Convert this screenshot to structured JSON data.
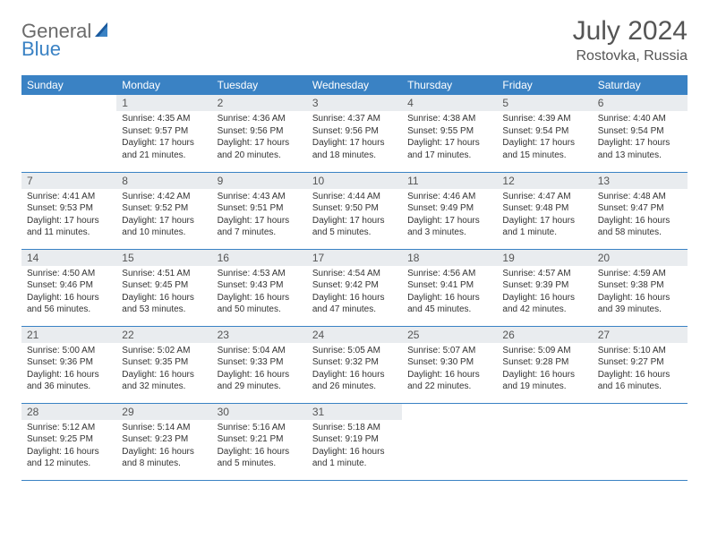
{
  "logo": {
    "text1": "General",
    "text2": "Blue"
  },
  "title": "July 2024",
  "location": "Rostovka, Russia",
  "colors": {
    "header_bg": "#3a82c4",
    "header_text": "#ffffff",
    "daynum_bg": "#e9ecef",
    "border": "#3a82c4",
    "body_text": "#333333",
    "logo_gray": "#6b6b6b",
    "logo_blue": "#3a82c4"
  },
  "weekdays": [
    "Sunday",
    "Monday",
    "Tuesday",
    "Wednesday",
    "Thursday",
    "Friday",
    "Saturday"
  ],
  "weeks": [
    [
      {
        "empty": true
      },
      {
        "n": "1",
        "sr": "Sunrise: 4:35 AM",
        "ss": "Sunset: 9:57 PM",
        "dl": "Daylight: 17 hours and 21 minutes."
      },
      {
        "n": "2",
        "sr": "Sunrise: 4:36 AM",
        "ss": "Sunset: 9:56 PM",
        "dl": "Daylight: 17 hours and 20 minutes."
      },
      {
        "n": "3",
        "sr": "Sunrise: 4:37 AM",
        "ss": "Sunset: 9:56 PM",
        "dl": "Daylight: 17 hours and 18 minutes."
      },
      {
        "n": "4",
        "sr": "Sunrise: 4:38 AM",
        "ss": "Sunset: 9:55 PM",
        "dl": "Daylight: 17 hours and 17 minutes."
      },
      {
        "n": "5",
        "sr": "Sunrise: 4:39 AM",
        "ss": "Sunset: 9:54 PM",
        "dl": "Daylight: 17 hours and 15 minutes."
      },
      {
        "n": "6",
        "sr": "Sunrise: 4:40 AM",
        "ss": "Sunset: 9:54 PM",
        "dl": "Daylight: 17 hours and 13 minutes."
      }
    ],
    [
      {
        "n": "7",
        "sr": "Sunrise: 4:41 AM",
        "ss": "Sunset: 9:53 PM",
        "dl": "Daylight: 17 hours and 11 minutes."
      },
      {
        "n": "8",
        "sr": "Sunrise: 4:42 AM",
        "ss": "Sunset: 9:52 PM",
        "dl": "Daylight: 17 hours and 10 minutes."
      },
      {
        "n": "9",
        "sr": "Sunrise: 4:43 AM",
        "ss": "Sunset: 9:51 PM",
        "dl": "Daylight: 17 hours and 7 minutes."
      },
      {
        "n": "10",
        "sr": "Sunrise: 4:44 AM",
        "ss": "Sunset: 9:50 PM",
        "dl": "Daylight: 17 hours and 5 minutes."
      },
      {
        "n": "11",
        "sr": "Sunrise: 4:46 AM",
        "ss": "Sunset: 9:49 PM",
        "dl": "Daylight: 17 hours and 3 minutes."
      },
      {
        "n": "12",
        "sr": "Sunrise: 4:47 AM",
        "ss": "Sunset: 9:48 PM",
        "dl": "Daylight: 17 hours and 1 minute."
      },
      {
        "n": "13",
        "sr": "Sunrise: 4:48 AM",
        "ss": "Sunset: 9:47 PM",
        "dl": "Daylight: 16 hours and 58 minutes."
      }
    ],
    [
      {
        "n": "14",
        "sr": "Sunrise: 4:50 AM",
        "ss": "Sunset: 9:46 PM",
        "dl": "Daylight: 16 hours and 56 minutes."
      },
      {
        "n": "15",
        "sr": "Sunrise: 4:51 AM",
        "ss": "Sunset: 9:45 PM",
        "dl": "Daylight: 16 hours and 53 minutes."
      },
      {
        "n": "16",
        "sr": "Sunrise: 4:53 AM",
        "ss": "Sunset: 9:43 PM",
        "dl": "Daylight: 16 hours and 50 minutes."
      },
      {
        "n": "17",
        "sr": "Sunrise: 4:54 AM",
        "ss": "Sunset: 9:42 PM",
        "dl": "Daylight: 16 hours and 47 minutes."
      },
      {
        "n": "18",
        "sr": "Sunrise: 4:56 AM",
        "ss": "Sunset: 9:41 PM",
        "dl": "Daylight: 16 hours and 45 minutes."
      },
      {
        "n": "19",
        "sr": "Sunrise: 4:57 AM",
        "ss": "Sunset: 9:39 PM",
        "dl": "Daylight: 16 hours and 42 minutes."
      },
      {
        "n": "20",
        "sr": "Sunrise: 4:59 AM",
        "ss": "Sunset: 9:38 PM",
        "dl": "Daylight: 16 hours and 39 minutes."
      }
    ],
    [
      {
        "n": "21",
        "sr": "Sunrise: 5:00 AM",
        "ss": "Sunset: 9:36 PM",
        "dl": "Daylight: 16 hours and 36 minutes."
      },
      {
        "n": "22",
        "sr": "Sunrise: 5:02 AM",
        "ss": "Sunset: 9:35 PM",
        "dl": "Daylight: 16 hours and 32 minutes."
      },
      {
        "n": "23",
        "sr": "Sunrise: 5:04 AM",
        "ss": "Sunset: 9:33 PM",
        "dl": "Daylight: 16 hours and 29 minutes."
      },
      {
        "n": "24",
        "sr": "Sunrise: 5:05 AM",
        "ss": "Sunset: 9:32 PM",
        "dl": "Daylight: 16 hours and 26 minutes."
      },
      {
        "n": "25",
        "sr": "Sunrise: 5:07 AM",
        "ss": "Sunset: 9:30 PM",
        "dl": "Daylight: 16 hours and 22 minutes."
      },
      {
        "n": "26",
        "sr": "Sunrise: 5:09 AM",
        "ss": "Sunset: 9:28 PM",
        "dl": "Daylight: 16 hours and 19 minutes."
      },
      {
        "n": "27",
        "sr": "Sunrise: 5:10 AM",
        "ss": "Sunset: 9:27 PM",
        "dl": "Daylight: 16 hours and 16 minutes."
      }
    ],
    [
      {
        "n": "28",
        "sr": "Sunrise: 5:12 AM",
        "ss": "Sunset: 9:25 PM",
        "dl": "Daylight: 16 hours and 12 minutes."
      },
      {
        "n": "29",
        "sr": "Sunrise: 5:14 AM",
        "ss": "Sunset: 9:23 PM",
        "dl": "Daylight: 16 hours and 8 minutes."
      },
      {
        "n": "30",
        "sr": "Sunrise: 5:16 AM",
        "ss": "Sunset: 9:21 PM",
        "dl": "Daylight: 16 hours and 5 minutes."
      },
      {
        "n": "31",
        "sr": "Sunrise: 5:18 AM",
        "ss": "Sunset: 9:19 PM",
        "dl": "Daylight: 16 hours and 1 minute."
      },
      {
        "empty": true
      },
      {
        "empty": true
      },
      {
        "empty": true
      }
    ]
  ]
}
